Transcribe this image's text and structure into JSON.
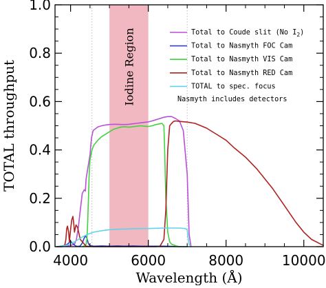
{
  "chart_data": {
    "type": "line",
    "xlabel": "Wavelength (Å)",
    "ylabel": "TOTAL throughput",
    "xlim": [
      3600,
      10500
    ],
    "ylim": [
      0.0,
      1.0
    ],
    "x_ticks": [
      {
        "value": 4000,
        "label": "4000"
      },
      {
        "value": 6000,
        "label": "6000"
      },
      {
        "value": 8000,
        "label": "8000"
      },
      {
        "value": 10000,
        "label": "10000"
      }
    ],
    "y_ticks": [
      {
        "value": 0.0,
        "label": "0.0"
      },
      {
        "value": 0.2,
        "label": "0.2"
      },
      {
        "value": 0.4,
        "label": "0.4"
      },
      {
        "value": 0.6,
        "label": "0.6"
      },
      {
        "value": 0.8,
        "label": "0.8"
      },
      {
        "value": 1.0,
        "label": "1.0"
      }
    ],
    "x_minor_step": 500,
    "y_minor_step": 0.05,
    "grid": false,
    "shaded_band": {
      "label": "Iodine Region",
      "x_range": [
        5000,
        6000
      ],
      "color": "#f2b8c2"
    },
    "reference_lines": {
      "x": [
        4550,
        7000
      ],
      "color": "#b8b8b8",
      "style": "dotted"
    },
    "legend": {
      "position": "top-right",
      "note": "Nasmyth includes detectors"
    },
    "series": [
      {
        "name": "Total to Coude slit (No I",
        "name_subscript": "2",
        "name_suffix": ")",
        "color": "#b84fd6",
        "x": [
          3650,
          3900,
          4000,
          4100,
          4150,
          4200,
          4250,
          4300,
          4350,
          4380,
          4400,
          4450,
          4500,
          4520,
          4540,
          4580,
          4700,
          4800,
          4900,
          5000,
          5100,
          5200,
          5300,
          5400,
          5500,
          5600,
          5700,
          5800,
          5900,
          6000,
          6100,
          6200,
          6300,
          6400,
          6500,
          6600,
          6700,
          6800,
          6900,
          7000,
          7050,
          7100
        ],
        "y": [
          0.0,
          0.002,
          0.005,
          0.01,
          0.03,
          0.08,
          0.15,
          0.22,
          0.235,
          0.23,
          0.28,
          0.33,
          0.38,
          0.42,
          0.45,
          0.48,
          0.495,
          0.5,
          0.503,
          0.505,
          0.506,
          0.506,
          0.505,
          0.505,
          0.506,
          0.508,
          0.51,
          0.512,
          0.514,
          0.516,
          0.52,
          0.525,
          0.53,
          0.535,
          0.538,
          0.538,
          0.53,
          0.52,
          0.48,
          0.3,
          0.05,
          0.0
        ]
      },
      {
        "name": "Total to Nasmyth FOC Cam",
        "color": "#2d3fc4",
        "x": [
          3650,
          3800,
          3900,
          3950,
          4000,
          4050,
          4100,
          4150,
          4200,
          4250,
          4300,
          4350,
          4380,
          4420,
          4460,
          4500,
          4600,
          4800,
          5000,
          5200,
          5400,
          5600,
          5800,
          6000,
          6200,
          6400,
          6600,
          6800,
          7000
        ],
        "y": [
          0.0,
          0.003,
          0.008,
          0.015,
          0.022,
          0.015,
          0.006,
          0.002,
          0.001,
          0.003,
          0.015,
          0.035,
          0.045,
          0.035,
          0.012,
          0.004,
          0.002,
          0.003,
          0.002,
          0.003,
          0.002,
          0.003,
          0.002,
          0.002,
          0.002,
          0.002,
          0.001,
          0.0,
          0.0
        ]
      },
      {
        "name": "Total to Nasmyth VIS Cam",
        "color": "#3fd23f",
        "x": [
          4300,
          4350,
          4400,
          4420,
          4440,
          4460,
          4480,
          4500,
          4550,
          4600,
          4700,
          4800,
          4900,
          5000,
          5100,
          5200,
          5300,
          5400,
          5500,
          5600,
          5700,
          5800,
          5900,
          6000,
          6100,
          6200,
          6300,
          6350,
          6400,
          6420,
          6450,
          6500,
          6550,
          6600,
          6700,
          6800
        ],
        "y": [
          0.0,
          0.003,
          0.01,
          0.03,
          0.1,
          0.2,
          0.3,
          0.36,
          0.4,
          0.42,
          0.44,
          0.455,
          0.465,
          0.475,
          0.485,
          0.49,
          0.495,
          0.496,
          0.494,
          0.496,
          0.498,
          0.5,
          0.498,
          0.497,
          0.5,
          0.505,
          0.508,
          0.51,
          0.5,
          0.4,
          0.2,
          0.06,
          0.02,
          0.01,
          0.004,
          0.0
        ]
      },
      {
        "name": "Total to Nasmyth RED Cam",
        "color": "#b02020",
        "x": [
          3650,
          3800,
          3850,
          3880,
          3900,
          3920,
          3950,
          3970,
          4000,
          4030,
          4060,
          4080,
          4100,
          4140,
          4180,
          4250,
          4400,
          4600,
          5000,
          5500,
          6000,
          6200,
          6300,
          6400,
          6450,
          6500,
          6550,
          6600,
          6650,
          6700,
          6800,
          7000,
          7200,
          7500,
          7800,
          8000,
          8200,
          8500,
          8800,
          9000,
          9200,
          9500,
          9800,
          10000,
          10200,
          10500
        ],
        "y": [
          0.0,
          0.0,
          0.005,
          0.03,
          0.075,
          0.085,
          0.06,
          0.02,
          0.07,
          0.11,
          0.125,
          0.1,
          0.06,
          0.09,
          0.08,
          0.03,
          0.002,
          0.0,
          0.0,
          0.0,
          0.0,
          0.0,
          0.002,
          0.03,
          0.15,
          0.4,
          0.5,
          0.51,
          0.518,
          0.52,
          0.518,
          0.515,
          0.51,
          0.49,
          0.46,
          0.44,
          0.41,
          0.37,
          0.32,
          0.28,
          0.24,
          0.17,
          0.1,
          0.06,
          0.03,
          0.005
        ]
      },
      {
        "name": "TOTAL to spec. focus",
        "color": "#5ed4e8",
        "x": [
          3650,
          3800,
          3900,
          4000,
          4100,
          4200,
          4300,
          4400,
          4500,
          4600,
          4800,
          5000,
          5200,
          5400,
          5600,
          5800,
          6000,
          6200,
          6400,
          6600,
          6800,
          6950,
          7000,
          7020,
          7050,
          7100
        ],
        "y": [
          0.0,
          0.002,
          0.006,
          0.012,
          0.02,
          0.03,
          0.04,
          0.048,
          0.055,
          0.06,
          0.066,
          0.07,
          0.072,
          0.073,
          0.074,
          0.075,
          0.075,
          0.076,
          0.077,
          0.077,
          0.077,
          0.075,
          0.07,
          0.04,
          0.01,
          0.0
        ]
      }
    ]
  }
}
